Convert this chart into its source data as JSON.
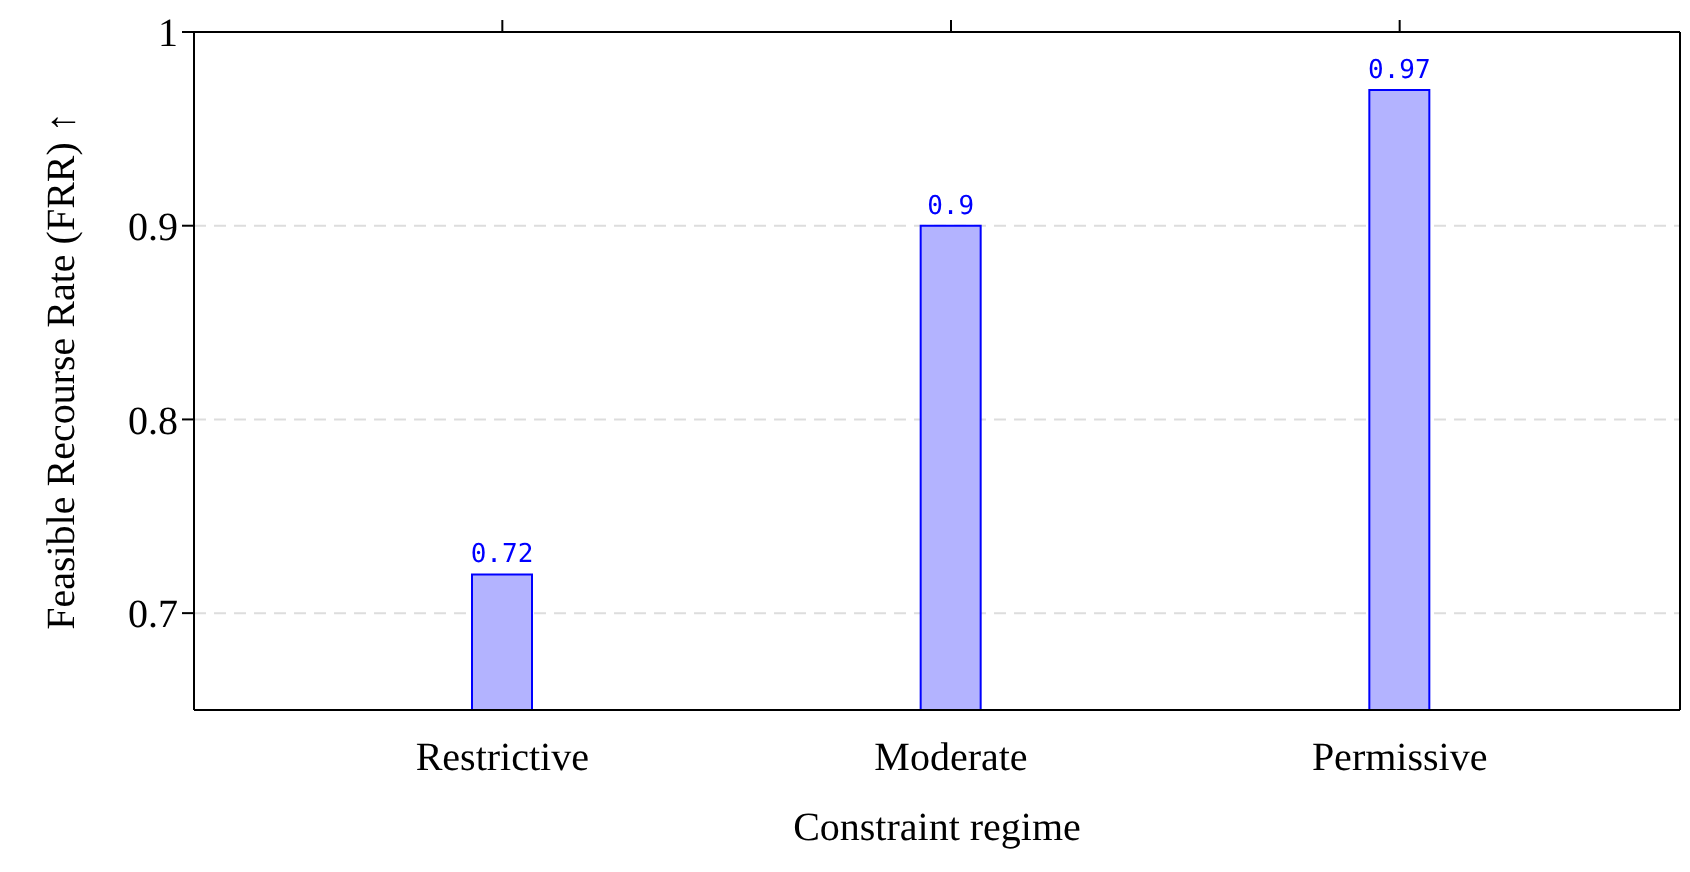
{
  "chart_data": {
    "type": "bar",
    "xlabel": "Constraint regime",
    "ylabel": "Feasible Recourse Rate (FRR) ↑",
    "categories": [
      "Restrictive",
      "Moderate",
      "Permissive"
    ],
    "values": [
      0.72,
      0.9,
      0.97
    ],
    "color": "#b3b3ff",
    "ylim": [
      0.65,
      1
    ],
    "yticks": [
      0.7,
      0.8,
      0.9,
      1
    ],
    "grid": "y",
    "data_labels": true
  }
}
